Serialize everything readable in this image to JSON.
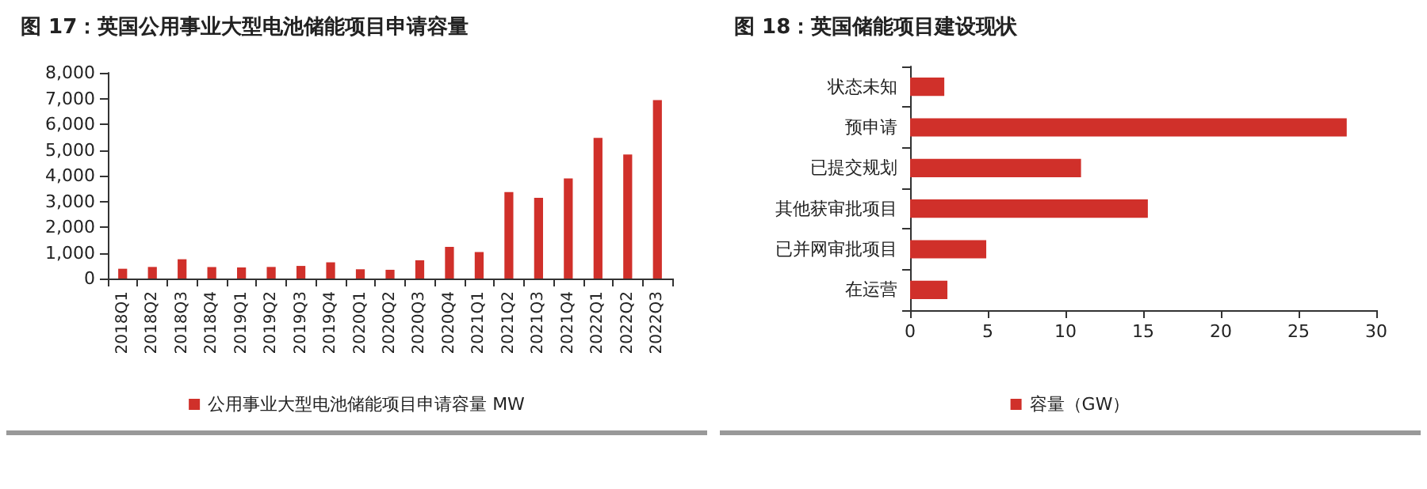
{
  "chart_data": [
    {
      "type": "bar",
      "title": "图 17：英国公用事业大型电池储能项目申请容量",
      "categories": [
        "2018Q1",
        "2018Q2",
        "2018Q3",
        "2018Q4",
        "2019Q1",
        "2019Q2",
        "2019Q3",
        "2019Q4",
        "2020Q1",
        "2020Q2",
        "2020Q3",
        "2020Q4",
        "2021Q1",
        "2021Q2",
        "2021Q3",
        "2021Q4",
        "2022Q1",
        "2022Q2",
        "2022Q3"
      ],
      "series": [
        {
          "name": "公用事业大型电池储能项目申请容量 MW",
          "color": "#d0302a",
          "values": [
            380,
            450,
            750,
            450,
            430,
            450,
            490,
            630,
            360,
            340,
            710,
            1230,
            1030,
            3360,
            3140,
            3890,
            5470,
            4820,
            6940
          ]
        }
      ],
      "ylim": [
        0,
        8000
      ],
      "yticks": [
        0,
        {
          "value": 1000,
          "label": "1,000"
        },
        {
          "value": 2000,
          "label": "2,000"
        },
        {
          "value": 3000,
          "label": "3,000"
        },
        {
          "value": 4000,
          "label": "4,000"
        },
        {
          "value": 5000,
          "label": "5,000"
        },
        {
          "value": 6000,
          "label": "6,000"
        },
        {
          "value": 7000,
          "label": "7,000"
        },
        {
          "value": 8000,
          "label": "8,000"
        }
      ],
      "grid": false,
      "legend": "bottom"
    },
    {
      "type": "bar",
      "title": "图 18：英国储能项目建设现状",
      "orientation": "horizontal",
      "categories": [
        "状态未知",
        "预申请",
        "已提交规划",
        "其他获审批项目",
        "已并网审批项目",
        "在运营"
      ],
      "series": [
        {
          "name": "容量（GW）",
          "color": "#d0302a",
          "values": [
            2.2,
            28.1,
            11.0,
            15.3,
            4.9,
            2.4
          ]
        }
      ],
      "xlim": [
        0,
        30
      ],
      "xticks": [
        0,
        5,
        10,
        15,
        20,
        25,
        30
      ],
      "grid": false,
      "legend": "bottom"
    }
  ]
}
